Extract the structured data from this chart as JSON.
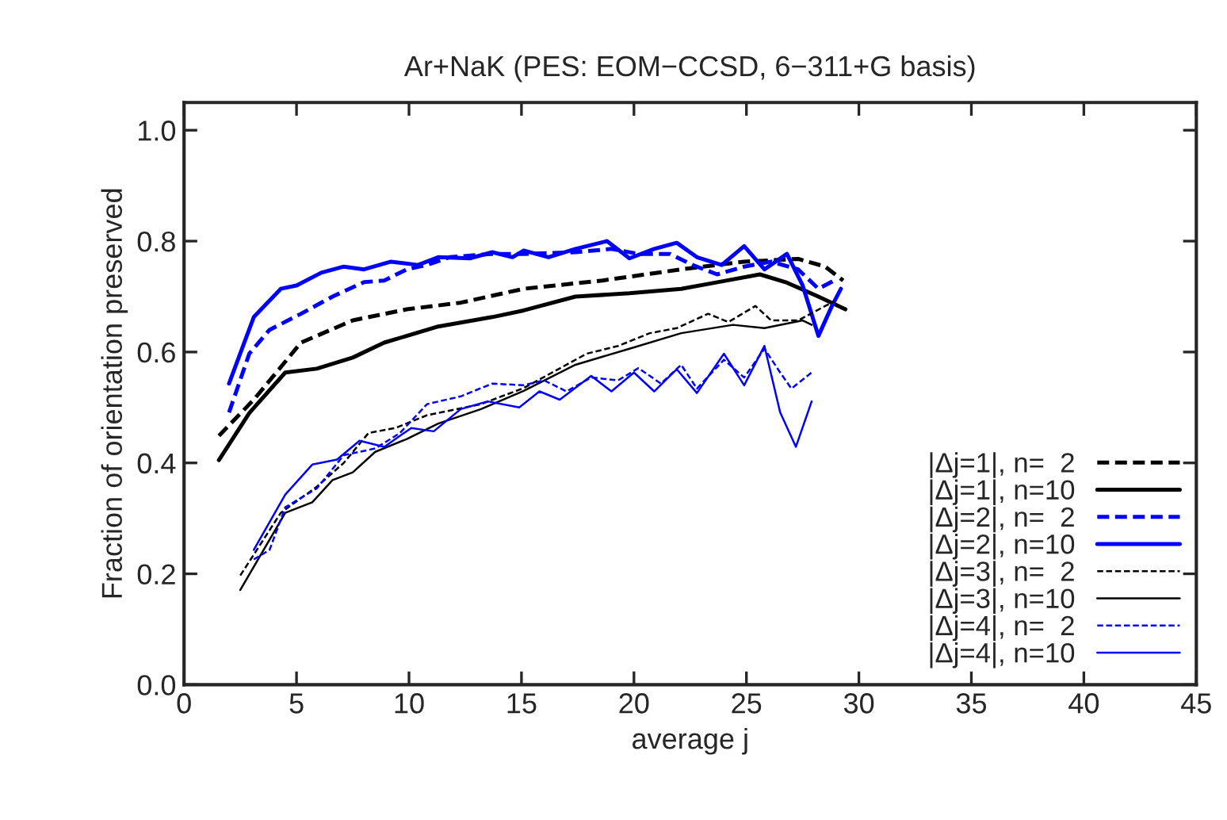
{
  "chart_data": {
    "type": "line",
    "title": "Ar+NaK (PES: EOM−CCSD, 6−311+G basis)",
    "xlabel": "average j",
    "ylabel": "Fraction of orientation preserved",
    "xlim": [
      0,
      45
    ],
    "xticks": [
      0,
      5,
      10,
      15,
      20,
      25,
      30,
      35,
      40,
      45
    ],
    "ylim": [
      0,
      1.05
    ],
    "yticks": [
      {
        "value": 0,
        "label": "0.0"
      },
      {
        "value": 0.2,
        "label": "0.2"
      },
      {
        "value": 0.4,
        "label": "0.4"
      },
      {
        "value": 0.6,
        "label": "0.6"
      },
      {
        "value": 0.8,
        "label": "0.8"
      },
      {
        "value": 1.0,
        "label": "1.0"
      }
    ],
    "grid": false,
    "legend": "bottom right",
    "series": [
      {
        "name": "|Δj=1|, n=  2",
        "color": "#000000",
        "line_style": "dashed",
        "x": [
          1.55,
          3.1,
          5.2,
          7.5,
          9.9,
          12.3,
          15.1,
          16.5,
          18.6,
          22.1,
          24.9,
          27.3,
          28.5,
          29.3
        ],
        "values": [
          0.449,
          0.514,
          0.617,
          0.657,
          0.677,
          0.689,
          0.714,
          0.72,
          0.729,
          0.749,
          0.763,
          0.768,
          0.754,
          0.729
        ]
      },
      {
        "name": "|Δj=1|, n=10",
        "color": "#000000",
        "line_style": "solid",
        "x": [
          1.55,
          2.9,
          4.5,
          5.9,
          7.5,
          8.9,
          11.3,
          13.7,
          15.1,
          17.4,
          19.8,
          22.1,
          24.0,
          25.6,
          26.8,
          28.2,
          29.4
        ],
        "values": [
          0.405,
          0.49,
          0.563,
          0.57,
          0.59,
          0.617,
          0.646,
          0.663,
          0.675,
          0.7,
          0.706,
          0.714,
          0.728,
          0.74,
          0.725,
          0.7,
          0.677
        ]
      },
      {
        "name": "|Δj=2|, n=  2",
        "color": "#0000ff",
        "line_style": "dashed",
        "x": [
          2.0,
          2.9,
          3.8,
          5.2,
          6.6,
          8.0,
          8.9,
          9.9,
          10.8,
          11.8,
          13.7,
          15.1,
          17.4,
          19.0,
          20.2,
          21.6,
          22.6,
          23.7,
          24.9,
          26.1,
          27.3,
          28.2,
          28.9
        ],
        "values": [
          0.491,
          0.597,
          0.64,
          0.669,
          0.7,
          0.726,
          0.729,
          0.749,
          0.757,
          0.771,
          0.777,
          0.777,
          0.78,
          0.786,
          0.777,
          0.777,
          0.757,
          0.74,
          0.754,
          0.763,
          0.749,
          0.714,
          0.729
        ]
      },
      {
        "name": "|Δj=2|, n=10",
        "color": "#0000ff",
        "line_style": "solid",
        "x": [
          2.0,
          3.1,
          4.3,
          5.0,
          6.1,
          7.1,
          8.0,
          9.2,
          10.4,
          11.3,
          12.7,
          13.7,
          14.6,
          15.1,
          16.2,
          17.4,
          18.8,
          19.8,
          20.9,
          21.9,
          22.8,
          23.9,
          24.9,
          25.8,
          26.8,
          27.5,
          28.2,
          28.8,
          29.2
        ],
        "values": [
          0.543,
          0.663,
          0.714,
          0.72,
          0.743,
          0.754,
          0.749,
          0.763,
          0.757,
          0.771,
          0.769,
          0.78,
          0.771,
          0.783,
          0.771,
          0.786,
          0.8,
          0.769,
          0.786,
          0.797,
          0.771,
          0.757,
          0.791,
          0.749,
          0.777,
          0.72,
          0.629,
          0.683,
          0.714
        ]
      },
      {
        "name": "|Δj=3|, n=  2",
        "color": "#000000",
        "line_style": "dashed",
        "x": [
          2.5,
          4.3,
          5.9,
          7.1,
          8.2,
          9.4,
          10.8,
          13.2,
          15.1,
          17.9,
          19.3,
          20.7,
          21.9,
          23.3,
          24.2,
          25.4,
          26.1,
          27.3,
          28.5,
          28.9
        ],
        "values": [
          0.197,
          0.31,
          0.357,
          0.4,
          0.454,
          0.463,
          0.486,
          0.506,
          0.535,
          0.597,
          0.611,
          0.634,
          0.643,
          0.669,
          0.654,
          0.683,
          0.657,
          0.657,
          0.683,
          0.691
        ]
      },
      {
        "name": "|Δj=3|, n=10",
        "color": "#000000",
        "line_style": "solid",
        "x": [
          2.5,
          4.5,
          5.7,
          6.6,
          7.5,
          8.5,
          9.9,
          11.3,
          13.2,
          15.1,
          17.4,
          19.8,
          22.1,
          24.4,
          25.8,
          27.5,
          27.9
        ],
        "values": [
          0.171,
          0.31,
          0.329,
          0.369,
          0.383,
          0.42,
          0.443,
          0.471,
          0.497,
          0.53,
          0.577,
          0.606,
          0.634,
          0.649,
          0.643,
          0.657,
          0.649
        ]
      },
      {
        "name": "|Δj=4|, n=  2",
        "color": "#0000ff",
        "line_style": "dashed",
        "x": [
          3.1,
          3.8,
          4.5,
          5.9,
          7.1,
          8.5,
          9.6,
          10.8,
          12.3,
          13.7,
          15.1,
          16.0,
          17.0,
          18.1,
          19.3,
          20.2,
          21.2,
          22.1,
          22.8,
          24.0,
          24.9,
          25.8,
          26.5,
          27.0,
          27.9
        ],
        "values": [
          0.226,
          0.243,
          0.32,
          0.354,
          0.414,
          0.426,
          0.454,
          0.506,
          0.52,
          0.543,
          0.54,
          0.549,
          0.529,
          0.554,
          0.549,
          0.571,
          0.543,
          0.577,
          0.534,
          0.586,
          0.554,
          0.606,
          0.563,
          0.534,
          0.563
        ]
      },
      {
        "name": "|Δj=4|, n=10",
        "color": "#0000ff",
        "line_style": "solid",
        "x": [
          3.1,
          4.5,
          5.7,
          6.8,
          7.8,
          8.9,
          10.1,
          11.1,
          12.3,
          13.5,
          14.9,
          15.8,
          16.7,
          18.1,
          19.0,
          20.0,
          20.9,
          21.9,
          22.8,
          24.0,
          24.9,
          25.8,
          26.5,
          27.2,
          27.9
        ],
        "values": [
          0.243,
          0.343,
          0.397,
          0.406,
          0.44,
          0.429,
          0.463,
          0.457,
          0.497,
          0.511,
          0.5,
          0.529,
          0.514,
          0.557,
          0.529,
          0.563,
          0.529,
          0.569,
          0.526,
          0.597,
          0.54,
          0.611,
          0.491,
          0.429,
          0.511
        ]
      }
    ]
  }
}
